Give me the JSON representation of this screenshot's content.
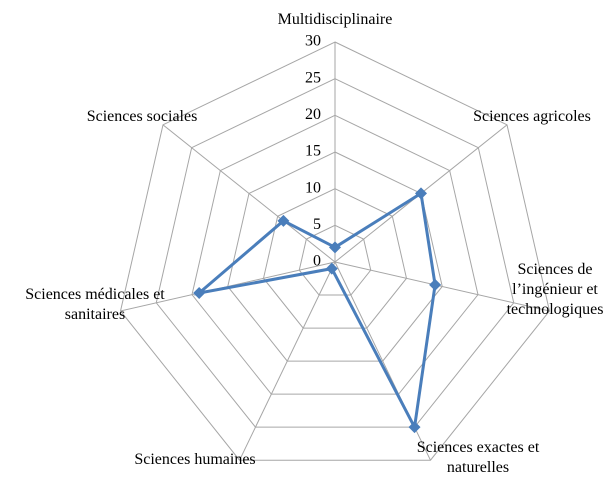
{
  "chart_data": {
    "type": "radar",
    "categories": [
      "Multidisciplinaire",
      "Sciences agricoles",
      "Sciences de l’ingénieur et technologiques",
      "Sciences exactes et naturelles",
      "Sciences humaines",
      "Sciences médicales et sanitaires",
      "Sciences sociales"
    ],
    "values": [
      2,
      15,
      14,
      25,
      1,
      19,
      9
    ],
    "color": "#4a7ebb",
    "ylim": [
      0,
      30
    ],
    "yticks": [
      0,
      5,
      10,
      15,
      20,
      25,
      30
    ],
    "grid": true
  }
}
